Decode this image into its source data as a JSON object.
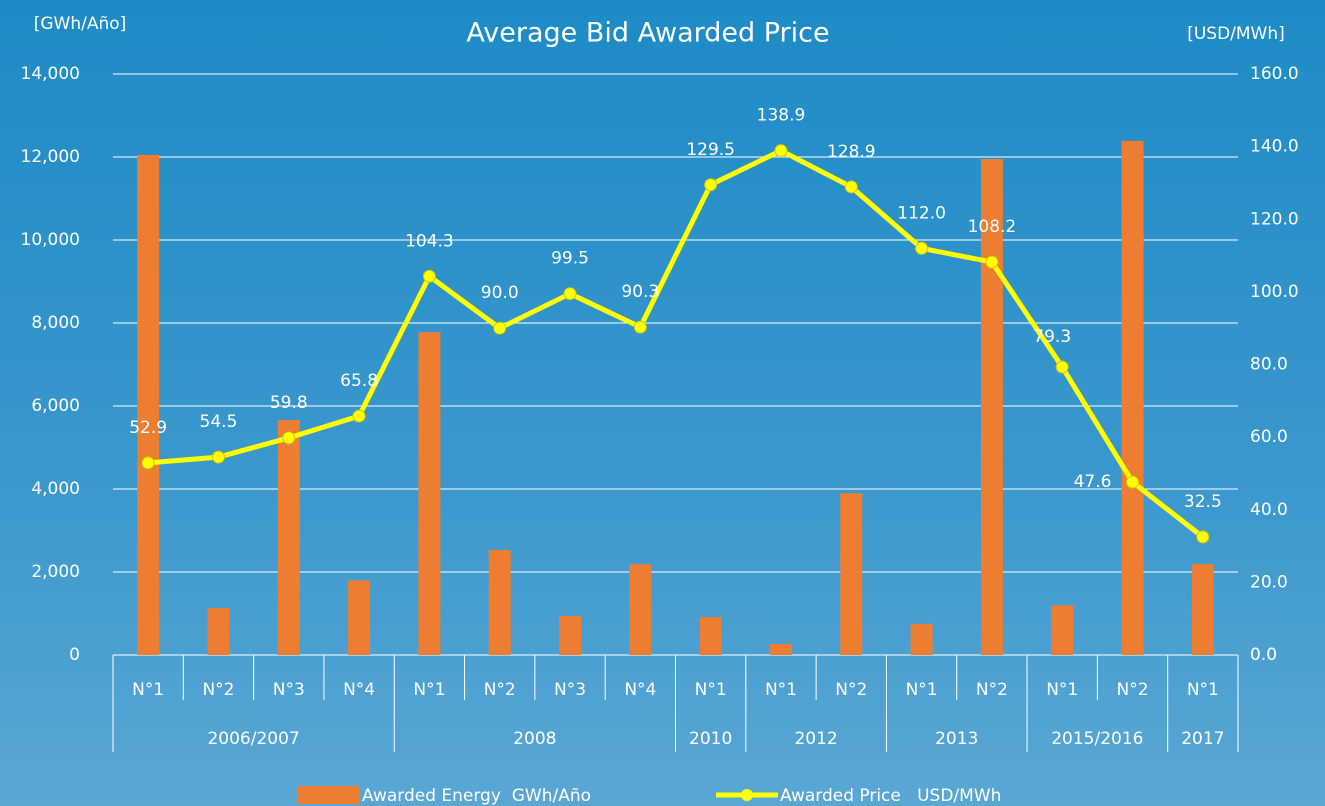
{
  "chart_data": {
    "type": "bar-line",
    "title": "Average Bid Awarded Price",
    "y_label": "[GWh/Año]",
    "y2_label": "[USD/MWh]",
    "groups": [
      {
        "name": "2006/2007",
        "categories": [
          "N°1",
          "N°2",
          "N°3",
          "N°4"
        ]
      },
      {
        "name": "2008",
        "categories": [
          "N°1",
          "N°2",
          "N°3",
          "N°4"
        ]
      },
      {
        "name": "2010",
        "categories": [
          "N°1"
        ]
      },
      {
        "name": "2012",
        "categories": [
          "N°1",
          "N°2"
        ]
      },
      {
        "name": "2013",
        "categories": [
          "N°1",
          "N°2"
        ]
      },
      {
        "name": "2015/2016",
        "categories": [
          "N°1",
          "N°2"
        ]
      },
      {
        "name": "2017",
        "categories": [
          "N°1"
        ]
      }
    ],
    "series": [
      {
        "name": "Awarded Energy  GWh/Año",
        "type": "bar",
        "color": "#ed7d31",
        "axis": "y",
        "values": [
          12050,
          1130,
          5660,
          1800,
          7780,
          2530,
          940,
          2190,
          915,
          265,
          3900,
          750,
          11950,
          1200,
          12390,
          2190
        ]
      },
      {
        "name": "Awarded Price   USD/MWh",
        "type": "line",
        "color": "#ffff00",
        "axis": "y2",
        "values": [
          52.9,
          54.5,
          59.8,
          65.8,
          104.3,
          90.0,
          99.5,
          90.3,
          129.5,
          138.9,
          128.9,
          112.0,
          108.2,
          79.3,
          47.6,
          32.5
        ],
        "value_labels": [
          "52.9",
          "54.5",
          "59.8",
          "65.8",
          "104.3",
          "90.0",
          "99.5",
          "90.3",
          "129.5",
          "138.9",
          "128.9",
          "112.0",
          "108.2",
          "79.3",
          "47.6",
          "32.5"
        ]
      }
    ],
    "ylim": [
      0,
      14000
    ],
    "yticks": [
      0,
      {
        "value": 2000,
        "label": "2,000"
      },
      {
        "value": 4000,
        "label": "4,000"
      },
      {
        "value": 6000,
        "label": "6,000"
      },
      {
        "value": 8000,
        "label": "8,000"
      },
      {
        "value": 10000,
        "label": "10,000"
      },
      {
        "value": 12000,
        "label": "12,000"
      },
      {
        "value": 14000,
        "label": "14,000"
      }
    ],
    "y2lim": [
      0,
      160
    ],
    "y2ticks": [
      {
        "value": 0,
        "label": "0.0"
      },
      {
        "value": 20,
        "label": "20.0"
      },
      {
        "value": 40,
        "label": "40.0"
      },
      {
        "value": 60,
        "label": "60.0"
      },
      {
        "value": 80,
        "label": "80.0"
      },
      {
        "value": 100,
        "label": "100.0"
      },
      {
        "value": 120,
        "label": "120.0"
      },
      {
        "value": 140,
        "label": "140.0"
      },
      {
        "value": 160,
        "label": "160.0"
      }
    ],
    "grid": true,
    "legend": "bottom"
  }
}
